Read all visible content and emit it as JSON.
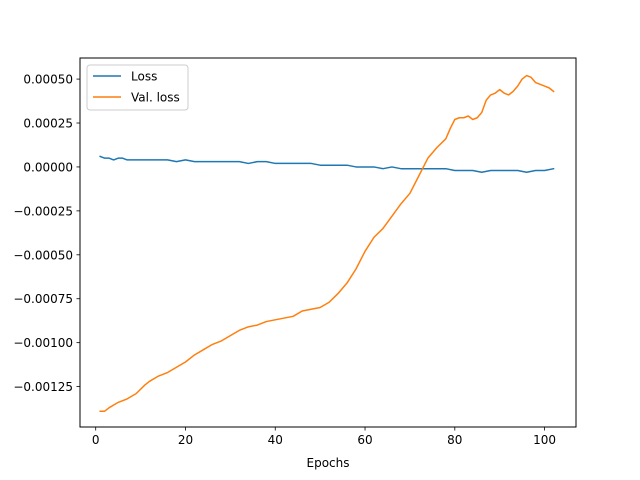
{
  "chart_data": {
    "type": "line",
    "title": "",
    "xlabel": "Epochs",
    "ylabel": "",
    "xlim": [
      -3.5,
      107
    ],
    "ylim": [
      -0.00148,
      0.00062
    ],
    "x_ticks": [
      0,
      20,
      40,
      60,
      80,
      100
    ],
    "x_tick_labels": [
      "0",
      "20",
      "40",
      "60",
      "80",
      "100"
    ],
    "y_ticks": [
      0.0005,
      0.00025,
      0.0,
      -0.00025,
      -0.0005,
      -0.00075,
      -0.001,
      -0.00125
    ],
    "y_tick_labels": [
      "0.00050",
      "0.00025",
      "0.00000",
      "−0.00025",
      "−0.00050",
      "−0.00075",
      "−0.00100",
      "−0.00125"
    ],
    "grid": false,
    "legend": {
      "position": "top-left"
    },
    "series": [
      {
        "name": "Loss",
        "color": "#1f77b4",
        "points": [
          [
            1,
            6e-05
          ],
          [
            2,
            5e-05
          ],
          [
            3,
            5e-05
          ],
          [
            4,
            4e-05
          ],
          [
            5,
            5e-05
          ],
          [
            6,
            5e-05
          ],
          [
            7,
            4e-05
          ],
          [
            8,
            4e-05
          ],
          [
            9,
            4e-05
          ],
          [
            10,
            4e-05
          ],
          [
            12,
            4e-05
          ],
          [
            14,
            4e-05
          ],
          [
            16,
            4e-05
          ],
          [
            18,
            3e-05
          ],
          [
            20,
            4e-05
          ],
          [
            22,
            3e-05
          ],
          [
            24,
            3e-05
          ],
          [
            26,
            3e-05
          ],
          [
            28,
            3e-05
          ],
          [
            30,
            3e-05
          ],
          [
            32,
            3e-05
          ],
          [
            34,
            2e-05
          ],
          [
            36,
            3e-05
          ],
          [
            38,
            3e-05
          ],
          [
            40,
            2e-05
          ],
          [
            42,
            2e-05
          ],
          [
            44,
            2e-05
          ],
          [
            46,
            2e-05
          ],
          [
            48,
            2e-05
          ],
          [
            50,
            1e-05
          ],
          [
            52,
            1e-05
          ],
          [
            54,
            1e-05
          ],
          [
            56,
            1e-05
          ],
          [
            58,
            0.0
          ],
          [
            60,
            0.0
          ],
          [
            62,
            0.0
          ],
          [
            64,
            -1e-05
          ],
          [
            66,
            0.0
          ],
          [
            68,
            -1e-05
          ],
          [
            70,
            -1e-05
          ],
          [
            72,
            -1e-05
          ],
          [
            74,
            -1e-05
          ],
          [
            76,
            -1e-05
          ],
          [
            78,
            -1e-05
          ],
          [
            80,
            -2e-05
          ],
          [
            82,
            -2e-05
          ],
          [
            84,
            -2e-05
          ],
          [
            86,
            -3e-05
          ],
          [
            88,
            -2e-05
          ],
          [
            90,
            -2e-05
          ],
          [
            92,
            -2e-05
          ],
          [
            94,
            -2e-05
          ],
          [
            96,
            -3e-05
          ],
          [
            98,
            -2e-05
          ],
          [
            100,
            -2e-05
          ],
          [
            102,
            -1e-05
          ]
        ]
      },
      {
        "name": "Val. loss",
        "color": "#ff7f0e",
        "points": [
          [
            1,
            -0.00139
          ],
          [
            2,
            -0.00139
          ],
          [
            3,
            -0.00137
          ],
          [
            5,
            -0.00134
          ],
          [
            7,
            -0.00132
          ],
          [
            9,
            -0.00129
          ],
          [
            11,
            -0.00124
          ],
          [
            12,
            -0.00122
          ],
          [
            14,
            -0.00119
          ],
          [
            16,
            -0.00117
          ],
          [
            18,
            -0.00114
          ],
          [
            20,
            -0.00111
          ],
          [
            22,
            -0.00107
          ],
          [
            24,
            -0.00104
          ],
          [
            26,
            -0.00101
          ],
          [
            28,
            -0.00099
          ],
          [
            30,
            -0.00096
          ],
          [
            32,
            -0.00093
          ],
          [
            34,
            -0.00091
          ],
          [
            36,
            -0.0009
          ],
          [
            38,
            -0.00088
          ],
          [
            40,
            -0.00087
          ],
          [
            42,
            -0.00086
          ],
          [
            44,
            -0.00085
          ],
          [
            46,
            -0.00082
          ],
          [
            48,
            -0.00081
          ],
          [
            50,
            -0.0008
          ],
          [
            52,
            -0.00077
          ],
          [
            54,
            -0.00072
          ],
          [
            56,
            -0.00066
          ],
          [
            58,
            -0.00058
          ],
          [
            60,
            -0.00048
          ],
          [
            62,
            -0.0004
          ],
          [
            64,
            -0.00035
          ],
          [
            66,
            -0.00028
          ],
          [
            68,
            -0.00021
          ],
          [
            70,
            -0.00015
          ],
          [
            72,
            -5e-05
          ],
          [
            74,
            5e-05
          ],
          [
            76,
            0.00011
          ],
          [
            78,
            0.00016
          ],
          [
            79,
            0.00022
          ],
          [
            80,
            0.00027
          ],
          [
            81,
            0.00028
          ],
          [
            82,
            0.00028
          ],
          [
            83,
            0.00029
          ],
          [
            84,
            0.00027
          ],
          [
            85,
            0.00028
          ],
          [
            86,
            0.00031
          ],
          [
            87,
            0.00038
          ],
          [
            88,
            0.00041
          ],
          [
            89,
            0.00042
          ],
          [
            90,
            0.00044
          ],
          [
            91,
            0.00042
          ],
          [
            92,
            0.00041
          ],
          [
            93,
            0.00043
          ],
          [
            94,
            0.00046
          ],
          [
            95,
            0.0005
          ],
          [
            96,
            0.00052
          ],
          [
            97,
            0.00051
          ],
          [
            98,
            0.00048
          ],
          [
            100,
            0.00046
          ],
          [
            101,
            0.00045
          ],
          [
            102,
            0.00043
          ]
        ]
      }
    ]
  }
}
